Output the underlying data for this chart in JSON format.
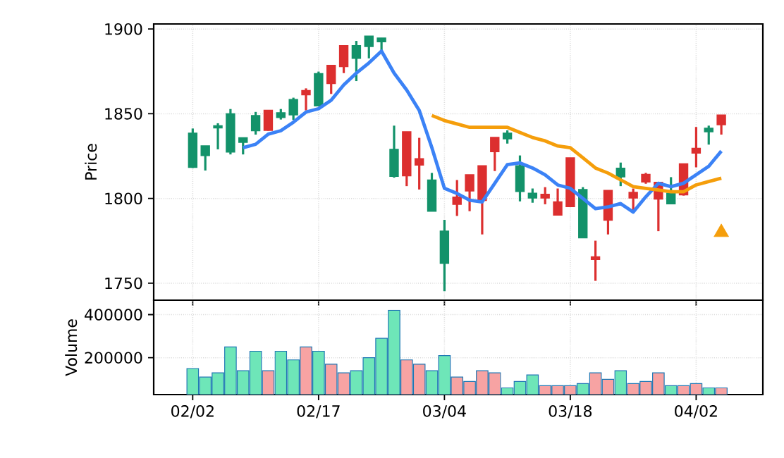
{
  "chart_data": [
    {
      "type": "candlestick",
      "ylabel": "Price",
      "ylim": [
        1740,
        1903
      ],
      "yticks": [
        1750,
        1800,
        1850,
        1900
      ],
      "grid": true,
      "tick_labels": "y",
      "categories": [
        null,
        null,
        null,
        null,
        null,
        null,
        null,
        null,
        null,
        null,
        null,
        null,
        null,
        null,
        null,
        null,
        null,
        null,
        null,
        null,
        null,
        null,
        null,
        null,
        null,
        null,
        null,
        null,
        null,
        null,
        null,
        null,
        null,
        null,
        null,
        null,
        null,
        null,
        null,
        null,
        null,
        null,
        null
      ],
      "ohlc": [
        [
          1818.4,
          1841.3,
          1818,
          1838.5
        ],
        [
          1825.4,
          1831,
          1816.5,
          1831
        ],
        [
          1842,
          1844.4,
          1829,
          1842.5
        ],
        [
          1827.4,
          1852.8,
          1826,
          1850
        ],
        [
          1833.2,
          1835.8,
          1826,
          1835.8
        ],
        [
          1840,
          1851.1,
          1837.7,
          1848.9
        ],
        [
          1852,
          1852,
          1840,
          1840.2
        ],
        [
          1847.8,
          1852.8,
          1846.6,
          1850.6
        ],
        [
          1849.4,
          1859.5,
          1846.4,
          1858.4
        ],
        [
          1863.7,
          1865,
          1852,
          1861.2
        ],
        [
          1854.7,
          1874.9,
          1854.7,
          1873.7
        ],
        [
          1878.5,
          1878.5,
          1861.7,
          1867.9
        ],
        [
          1890.2,
          1890.2,
          1874,
          1877.9
        ],
        [
          1882.7,
          1893,
          1869.3,
          1890.2
        ],
        [
          1889.7,
          1895.8,
          1882.7,
          1895.8
        ],
        [
          1892.5,
          1894.7,
          1887.4,
          1894.7
        ],
        [
          1813.1,
          1843,
          1812.3,
          1829
        ],
        [
          1839.4,
          1839.4,
          1807.3,
          1813.4
        ],
        [
          1823.5,
          1835.8,
          1805.3,
          1819.8
        ],
        [
          1792.5,
          1815.1,
          1792.5,
          1810.9
        ],
        [
          1761.7,
          1787.4,
          1745.3,
          1780.7
        ],
        [
          1800.8,
          1810.9,
          1789.7,
          1796.6
        ],
        [
          1814,
          1814,
          1792.5,
          1804.5
        ],
        [
          1819.3,
          1819.3,
          1778.8,
          1798.9
        ],
        [
          1836,
          1836,
          1816.2,
          1827.7
        ],
        [
          1835.2,
          1840.2,
          1832.4,
          1838.5
        ],
        [
          1804.2,
          1825.4,
          1798.3,
          1819.3
        ],
        [
          1800.3,
          1805.9,
          1797.5,
          1803.1
        ],
        [
          1802.5,
          1806.7,
          1796.6,
          1800.3
        ],
        [
          1798,
          1805.9,
          1790.2,
          1790.2
        ],
        [
          1824,
          1824,
          1795,
          1795.2
        ],
        [
          1776.8,
          1806.7,
          1776.8,
          1805.3
        ],
        [
          1765.6,
          1775.1,
          1751.4,
          1764
        ],
        [
          1804.7,
          1804.7,
          1778.8,
          1787.2
        ],
        [
          1812.8,
          1821.2,
          1807.3,
          1817.8
        ],
        [
          1803.6,
          1805.9,
          1791.9,
          1800.3
        ],
        [
          1814.2,
          1815.1,
          1808.7,
          1809.8
        ],
        [
          1809.5,
          1809.5,
          1780.7,
          1799.7
        ],
        [
          1796.9,
          1812.6,
          1796.9,
          1803.1
        ],
        [
          1820.4,
          1820.4,
          1801.7,
          1802.2
        ],
        [
          1829.6,
          1842.2,
          1818.4,
          1826.8
        ],
        [
          1839.4,
          1843,
          1831.8,
          1841.4
        ],
        [
          1849.2,
          1849.2,
          1837.7,
          1843.6
        ]
      ],
      "colors": [
        "#13926a",
        "#13926a",
        "#13926a",
        "#13926a",
        "#13926a",
        "#13926a",
        "#dc2f2f",
        "#13926a",
        "#13926a",
        "#dc2f2f",
        "#13926a",
        "#dc2f2f",
        "#dc2f2f",
        "#13926a",
        "#13926a",
        "#13926a",
        "#13926a",
        "#dc2f2f",
        "#dc2f2f",
        "#13926a",
        "#13926a",
        "#dc2f2f",
        "#dc2f2f",
        "#dc2f2f",
        "#dc2f2f",
        "#13926a",
        "#13926a",
        "#13926a",
        "#dc2f2f",
        "#dc2f2f",
        "#dc2f2f",
        "#13926a",
        "#dc2f2f",
        "#dc2f2f",
        "#13926a",
        "#dc2f2f",
        "#dc2f2f",
        "#dc2f2f",
        "#13926a",
        "#dc2f2f",
        "#dc2f2f",
        "#13926a",
        "#dc2f2f"
      ],
      "series": [
        {
          "type": "line",
          "color": "#3b82f6",
          "values": [
            null,
            null,
            null,
            null,
            1830,
            1832,
            1838,
            1840,
            1845,
            1851,
            1853,
            1858,
            1867,
            1874,
            1880,
            1887,
            1874,
            1864,
            1852,
            1830,
            1806,
            1803,
            1799,
            1798,
            1809,
            1820,
            1821,
            1818,
            1814,
            1808,
            1806,
            1800,
            1794,
            1795,
            1797,
            1792,
            1801,
            1809,
            1807,
            1809,
            1814,
            1819,
            1828
          ]
        },
        {
          "type": "line",
          "color": "#f59e0b",
          "values": [
            null,
            null,
            null,
            null,
            null,
            null,
            null,
            null,
            null,
            null,
            null,
            null,
            null,
            null,
            null,
            null,
            null,
            null,
            null,
            1849,
            1846,
            1844,
            1842,
            1842,
            1842,
            1842,
            1839,
            1836,
            1834,
            1831,
            1830,
            1824,
            1818,
            1815,
            1811,
            1807,
            1806,
            1805,
            1804,
            1804,
            1808,
            1810,
            1812
          ]
        },
        {
          "type": "scatter",
          "marker": "triangle",
          "color": "#f59e0b",
          "values": [
            null,
            null,
            null,
            null,
            null,
            null,
            null,
            null,
            null,
            null,
            null,
            null,
            null,
            null,
            null,
            null,
            null,
            null,
            null,
            null,
            null,
            null,
            null,
            null,
            null,
            null,
            null,
            null,
            null,
            null,
            null,
            null,
            null,
            null,
            null,
            null,
            null,
            null,
            null,
            null,
            null,
            null,
            1780
          ]
        }
      ]
    },
    {
      "type": "bar",
      "ylabel": "Volume",
      "ylim": [
        29000,
        467000
      ],
      "yticks": [
        200000,
        400000
      ],
      "grid": true,
      "categories": [
        "02/02",
        null,
        null,
        null,
        null,
        null,
        null,
        null,
        null,
        null,
        "02/17",
        null,
        null,
        null,
        null,
        null,
        null,
        null,
        null,
        null,
        "03/04",
        null,
        null,
        null,
        null,
        null,
        null,
        null,
        null,
        null,
        "03/18",
        null,
        null,
        null,
        null,
        null,
        null,
        null,
        null,
        null,
        "04/02",
        null,
        null
      ],
      "values": [
        150000,
        110000,
        130000,
        250000,
        140000,
        230000,
        140000,
        230000,
        190000,
        250000,
        230000,
        170000,
        130000,
        140000,
        200000,
        290000,
        420000,
        190000,
        170000,
        140000,
        210000,
        110000,
        90000,
        140000,
        130000,
        60000,
        90000,
        120000,
        70000,
        70000,
        70000,
        80000,
        130000,
        100000,
        140000,
        80000,
        90000,
        130000,
        70000,
        70000,
        80000,
        60000,
        60000
      ],
      "colors": [
        "#6ee6b8",
        "#6ee6b8",
        "#6ee6b8",
        "#6ee6b8",
        "#6ee6b8",
        "#6ee6b8",
        "#f7a3a3",
        "#6ee6b8",
        "#6ee6b8",
        "#f7a3a3",
        "#6ee6b8",
        "#f7a3a3",
        "#f7a3a3",
        "#6ee6b8",
        "#6ee6b8",
        "#6ee6b8",
        "#6ee6b8",
        "#f7a3a3",
        "#f7a3a3",
        "#6ee6b8",
        "#6ee6b8",
        "#f7a3a3",
        "#f7a3a3",
        "#f7a3a3",
        "#f7a3a3",
        "#6ee6b8",
        "#6ee6b8",
        "#6ee6b8",
        "#f7a3a3",
        "#f7a3a3",
        "#f7a3a3",
        "#6ee6b8",
        "#f7a3a3",
        "#f7a3a3",
        "#6ee6b8",
        "#f7a3a3",
        "#f7a3a3",
        "#f7a3a3",
        "#6ee6b8",
        "#f7a3a3",
        "#f7a3a3",
        "#6ee6b8",
        "#f7a3a3"
      ]
    }
  ]
}
